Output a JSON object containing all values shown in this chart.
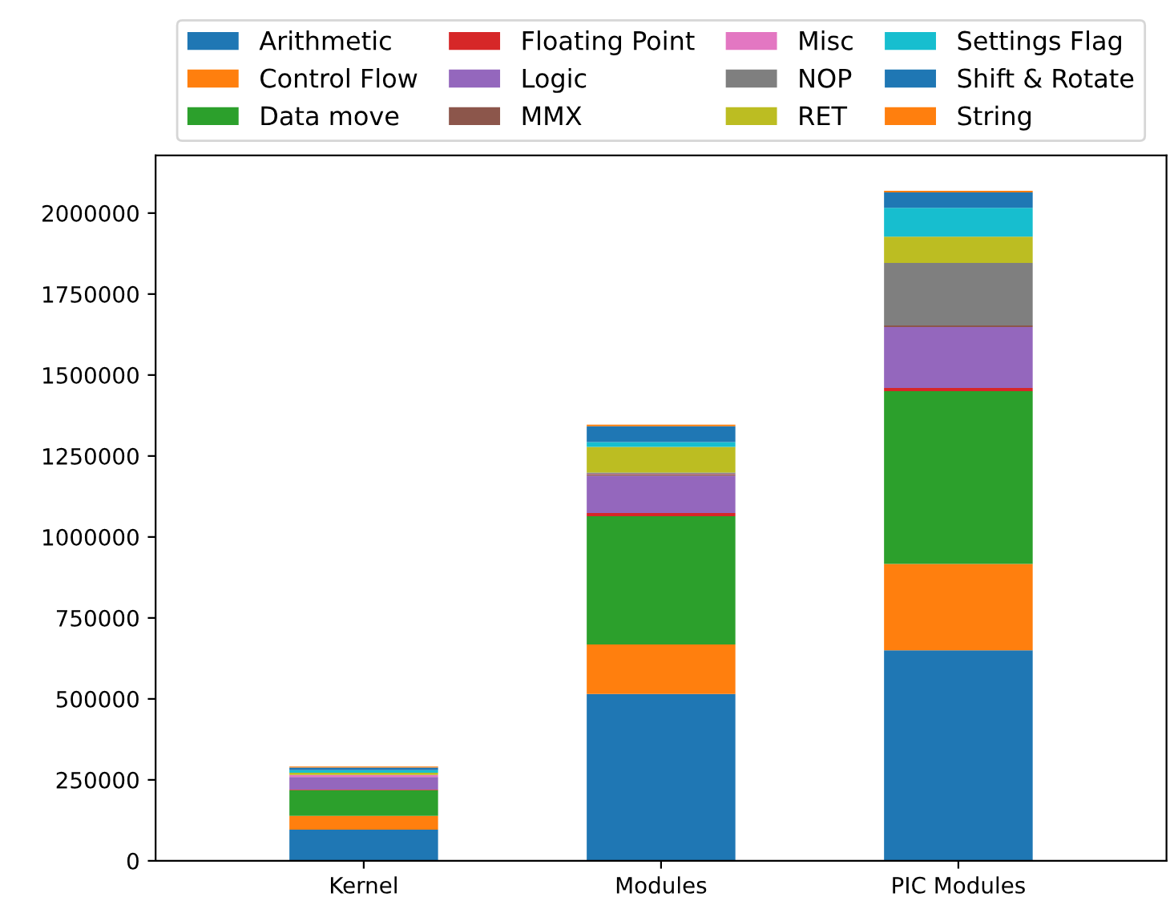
{
  "chart_data": {
    "type": "bar",
    "stacked": true,
    "categories": [
      "Kernel",
      "Modules",
      "PIC Modules"
    ],
    "series": [
      {
        "name": "Arithmetic",
        "color": "#1f77b4",
        "values": [
          96000,
          515000,
          650000
        ]
      },
      {
        "name": "Control Flow",
        "color": "#ff7f0e",
        "values": [
          43000,
          153000,
          267000
        ]
      },
      {
        "name": "Data move",
        "color": "#2ca02c",
        "values": [
          79000,
          396000,
          533000
        ]
      },
      {
        "name": "Floating Point",
        "color": "#d62728",
        "values": [
          2000,
          10000,
          10000
        ]
      },
      {
        "name": "Logic",
        "color": "#9467bd",
        "values": [
          39000,
          115000,
          188000
        ]
      },
      {
        "name": "MMX",
        "color": "#8c564b",
        "values": [
          null,
          5000,
          5000
        ]
      },
      {
        "name": "Misc",
        "color": "#e377c2",
        "values": [
          6000,
          1000,
          0
        ]
      },
      {
        "name": "NOP",
        "color": "#7f7f7f",
        "values": [
          null,
          4000,
          193000
        ]
      },
      {
        "name": "RET",
        "color": "#bcbd22",
        "values": [
          7000,
          79000,
          81000
        ]
      },
      {
        "name": "Settings Flag",
        "color": "#17becf",
        "values": [
          8000,
          15000,
          89000
        ]
      },
      {
        "name": "Shift & Rotate",
        "color": "#1f77b4",
        "values": [
          8000,
          49000,
          48000
        ]
      },
      {
        "name": "String",
        "color": "#ff7f0e",
        "values": [
          3000,
          5000,
          5000
        ]
      }
    ],
    "ylim": [
      0,
      2178000
    ],
    "yticks": [
      0,
      250000,
      500000,
      750000,
      1000000,
      1250000,
      1500000,
      1750000,
      2000000
    ],
    "legend": "top",
    "grid": false
  }
}
